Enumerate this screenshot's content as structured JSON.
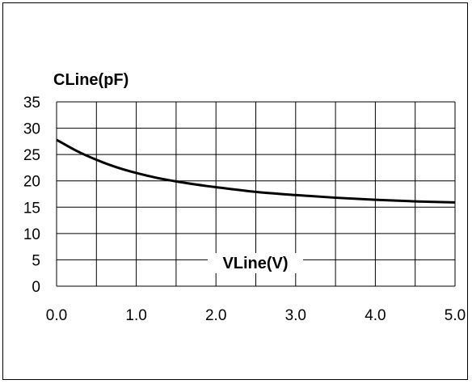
{
  "chart_data": {
    "type": "line",
    "title": "",
    "ylabel": "CLine(pF)",
    "xlabel": "VLine(V)",
    "xlim": [
      0.0,
      5.0
    ],
    "ylim": [
      0,
      35
    ],
    "grid": true,
    "x_ticks": [
      "0.0",
      "1.0",
      "2.0",
      "3.0",
      "4.0",
      "5.0"
    ],
    "x_grid_step": 0.5,
    "y_ticks": [
      "0",
      "5",
      "10",
      "15",
      "20",
      "25",
      "30",
      "35"
    ],
    "series": [
      {
        "color": "#000000",
        "x": [
          0.0,
          0.25,
          0.5,
          0.75,
          1.0,
          1.25,
          1.5,
          1.75,
          2.0,
          2.5,
          3.0,
          3.5,
          4.0,
          4.5,
          5.0
        ],
        "y": [
          27.8,
          25.7,
          24.0,
          22.6,
          21.5,
          20.6,
          19.9,
          19.3,
          18.8,
          17.9,
          17.3,
          16.8,
          16.4,
          16.1,
          15.9
        ]
      }
    ]
  }
}
